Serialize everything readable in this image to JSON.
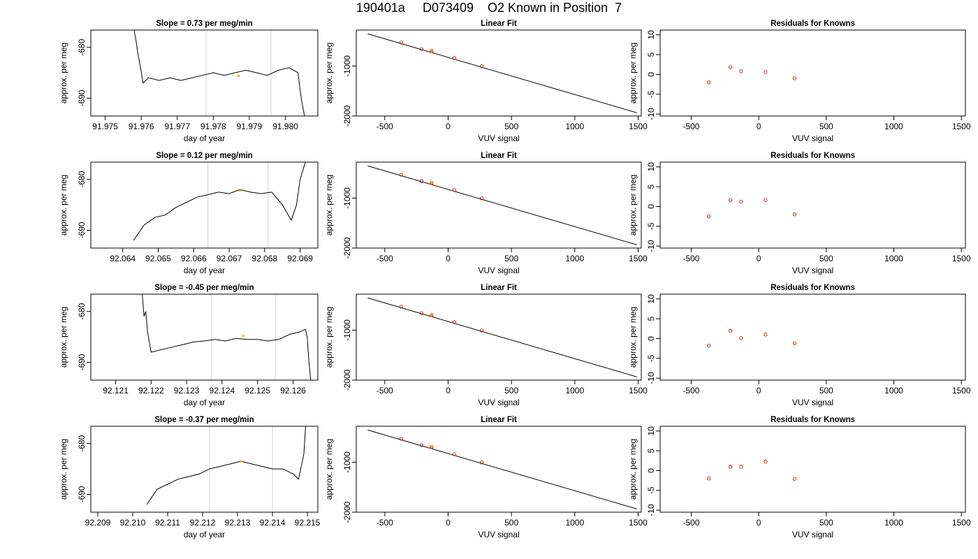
{
  "page_title": "190401a     D073409    O2 Known in Position  7",
  "colors": {
    "line": "#000000",
    "vline": "#d3d3d3",
    "highlight": "#ffa500",
    "points": "#cc2200",
    "frame": "#000000"
  },
  "chart_data": [
    {
      "type": "line",
      "title": "Slope =  0.73  per meg/min",
      "xlabel": "day of year",
      "ylabel": "approx. per meg",
      "xlim": [
        91.9746,
        91.9809
      ],
      "ylim": [
        -693.5,
        -676.6
      ],
      "xticks": [
        "91.975",
        "91.976",
        "91.977",
        "91.978",
        "91.979",
        "91.980"
      ],
      "xtick_values": [
        91.975,
        91.976,
        91.977,
        91.978,
        91.979,
        91.98
      ],
      "yticks": [
        "-690",
        "-680"
      ],
      "ytick_values": [
        -690,
        -680
      ],
      "vlines": [
        91.9778,
        91.9796
      ],
      "highlight_point": {
        "x": 91.9787,
        "y": -685.6
      },
      "series": [
        {
          "x": [
            91.9758,
            91.97585,
            91.9759,
            91.97598,
            91.97605,
            91.9762,
            91.9765,
            91.9768,
            91.9771,
            91.9774,
            91.9777,
            91.978,
            91.9783,
            91.9786,
            91.9789,
            91.9792,
            91.9795,
            91.9798,
            91.9801,
            91.98035,
            91.9804,
            91.98045,
            91.98053
          ],
          "y": [
            -676.6,
            -678.5,
            -681,
            -684,
            -687,
            -686,
            -686.5,
            -686,
            -686.5,
            -686,
            -685.5,
            -685,
            -685.5,
            -685,
            -684.5,
            -685,
            -685.5,
            -684.5,
            -684,
            -685,
            -688,
            -690.5,
            -693.5
          ]
        }
      ]
    },
    {
      "type": "line",
      "title": "Slope =  0.12  per meg/min",
      "xlabel": "day of year",
      "ylabel": "approx. per meg",
      "xlim": [
        92.0631,
        92.0695
      ],
      "ylim": [
        -693.5,
        -676.6
      ],
      "xticks": [
        "92.064",
        "92.065",
        "92.066",
        "92.067",
        "92.068",
        "92.069"
      ],
      "xtick_values": [
        92.064,
        92.065,
        92.066,
        92.067,
        92.068,
        92.069
      ],
      "yticks": [
        "-690",
        "-680"
      ],
      "ytick_values": [
        -690,
        -680
      ],
      "vlines": [
        92.0664,
        92.0681
      ],
      "highlight_point": {
        "x": 92.0673,
        "y": -682.2
      },
      "series": [
        {
          "x": [
            92.0643,
            92.0646,
            92.0649,
            92.0652,
            92.0655,
            92.0658,
            92.0661,
            92.0664,
            92.0667,
            92.067,
            92.0673,
            92.0676,
            92.0679,
            92.0682,
            92.0685,
            92.06875,
            92.0689,
            92.069,
            92.06915
          ],
          "y": [
            -692,
            -689,
            -687.5,
            -687,
            -685.5,
            -684.5,
            -683.5,
            -683,
            -682.5,
            -682.8,
            -682,
            -682.5,
            -682.8,
            -682.5,
            -685,
            -688,
            -685,
            -680,
            -676.6
          ]
        }
      ]
    },
    {
      "type": "line",
      "title": "Slope =  -0.45  per meg/min",
      "xlabel": "day of year",
      "ylabel": "approx. per meg",
      "xlim": [
        92.1203,
        92.1267
      ],
      "ylim": [
        -693.5,
        -676.6
      ],
      "xticks": [
        "92.121",
        "92.122",
        "92.123",
        "92.124",
        "92.125",
        "92.126"
      ],
      "xtick_values": [
        92.121,
        92.122,
        92.123,
        92.124,
        92.125,
        92.126
      ],
      "yticks": [
        "-690",
        "-680"
      ],
      "ytick_values": [
        -690,
        -680
      ],
      "vlines": [
        92.1237,
        92.1255
      ],
      "highlight_point": {
        "x": 92.1246,
        "y": -684.8
      },
      "series": [
        {
          "x": [
            92.12175,
            92.1218,
            92.12185,
            92.1219,
            92.122,
            92.1223,
            92.1226,
            92.1229,
            92.1232,
            92.1235,
            92.1238,
            92.1241,
            92.1244,
            92.1247,
            92.125,
            92.1253,
            92.1256,
            92.1259,
            92.1262,
            92.12635,
            92.1264,
            92.12645,
            92.1265
          ],
          "y": [
            -676.6,
            -681,
            -680,
            -684,
            -688,
            -687.5,
            -687,
            -686.5,
            -686,
            -685.8,
            -685.5,
            -685.8,
            -685.3,
            -685.5,
            -685.5,
            -685.8,
            -685.5,
            -684.5,
            -684,
            -683.5,
            -685,
            -690,
            -693.5
          ]
        }
      ]
    },
    {
      "type": "line",
      "title": "Slope =  -0.37  per meg/min",
      "xlabel": "day of year",
      "ylabel": "approx. per meg",
      "xlim": [
        92.2088,
        92.2153
      ],
      "ylim": [
        -693.5,
        -676.6
      ],
      "xticks": [
        "92.209",
        "92.210",
        "92.211",
        "92.212",
        "92.213",
        "92.214",
        "92.215"
      ],
      "xtick_values": [
        92.209,
        92.21,
        92.211,
        92.212,
        92.213,
        92.214,
        92.215
      ],
      "yticks": [
        "-690",
        "-680"
      ],
      "ytick_values": [
        -690,
        -680
      ],
      "vlines": [
        92.2122,
        92.214
      ],
      "highlight_point": {
        "x": 92.2131,
        "y": -683.5
      },
      "series": [
        {
          "x": [
            92.2104,
            92.2107,
            92.211,
            92.2113,
            92.2116,
            92.2119,
            92.2122,
            92.2125,
            92.2128,
            92.2131,
            92.2134,
            92.2137,
            92.214,
            92.2143,
            92.2146,
            92.21475,
            92.2149,
            92.21495
          ],
          "y": [
            -692,
            -689,
            -688,
            -687,
            -686.5,
            -686,
            -685,
            -684.5,
            -684,
            -683.5,
            -684,
            -684.5,
            -685,
            -685,
            -686,
            -687,
            -682,
            -676.6
          ]
        }
      ]
    },
    {
      "type": "scatter",
      "title": "Linear Fit",
      "xlabel": "VUV signal",
      "ylabel": "approx. per meg",
      "xlim": [
        -725,
        1525
      ],
      "ylim": [
        -2000,
        -280
      ],
      "xticks": [
        "-500",
        "0",
        "500",
        "1000",
        "1500"
      ],
      "xtick_values": [
        -500,
        0,
        500,
        1000,
        1500
      ],
      "yticks": [
        "-2000",
        "-1000"
      ],
      "ytick_values": [
        -2000,
        -1000
      ],
      "fit_line": {
        "x": [
          -635,
          1490
        ],
        "y": [
          -355,
          -1935
        ]
      },
      "points": {
        "x": [
          -370,
          -210,
          -130,
          50,
          265
        ],
        "y": [
          -530,
          -660,
          -700,
          -840,
          -1005
        ]
      },
      "highlight_point": {
        "x": -130,
        "y": -700
      }
    },
    {
      "type": "scatter",
      "title": "Linear Fit",
      "xlabel": "VUV signal",
      "ylabel": "approx. per meg",
      "xlim": [
        -725,
        1525
      ],
      "ylim": [
        -2000,
        -280
      ],
      "xticks": [
        "-500",
        "0",
        "500",
        "1000",
        "1500"
      ],
      "xtick_values": [
        -500,
        0,
        500,
        1000,
        1500
      ],
      "yticks": [
        "-2000",
        "-1000"
      ],
      "ytick_values": [
        -2000,
        -1000
      ],
      "fit_line": {
        "x": [
          -635,
          1490
        ],
        "y": [
          -355,
          -1935
        ]
      },
      "points": {
        "x": [
          -370,
          -210,
          -130,
          50,
          265
        ],
        "y": [
          -530,
          -660,
          -700,
          -840,
          -1005
        ]
      },
      "highlight_point": {
        "x": -130,
        "y": -700
      }
    },
    {
      "type": "scatter",
      "title": "Linear Fit",
      "xlabel": "VUV signal",
      "ylabel": "approx. per meg",
      "xlim": [
        -725,
        1525
      ],
      "ylim": [
        -2000,
        -280
      ],
      "xticks": [
        "-500",
        "0",
        "500",
        "1000",
        "1500"
      ],
      "xtick_values": [
        -500,
        0,
        500,
        1000,
        1500
      ],
      "yticks": [
        "-2000",
        "-1000"
      ],
      "ytick_values": [
        -2000,
        -1000
      ],
      "fit_line": {
        "x": [
          -635,
          1490
        ],
        "y": [
          -355,
          -1935
        ]
      },
      "points": {
        "x": [
          -370,
          -210,
          -130,
          50,
          265
        ],
        "y": [
          -530,
          -660,
          -700,
          -840,
          -1005
        ]
      },
      "highlight_point": {
        "x": -130,
        "y": -700
      }
    },
    {
      "type": "scatter",
      "title": "Linear Fit",
      "xlabel": "VUV signal",
      "ylabel": "approx. per meg",
      "xlim": [
        -725,
        1525
      ],
      "ylim": [
        -2000,
        -280
      ],
      "xticks": [
        "-500",
        "0",
        "500",
        "1000",
        "1500"
      ],
      "xtick_values": [
        -500,
        0,
        500,
        1000,
        1500
      ],
      "yticks": [
        "-2000",
        "-1000"
      ],
      "ytick_values": [
        -2000,
        -1000
      ],
      "fit_line": {
        "x": [
          -635,
          1490
        ],
        "y": [
          -355,
          -1935
        ]
      },
      "points": {
        "x": [
          -370,
          -210,
          -130,
          50,
          265
        ],
        "y": [
          -530,
          -660,
          -700,
          -840,
          -1005
        ]
      },
      "highlight_point": {
        "x": -130,
        "y": -700
      }
    },
    {
      "type": "scatter",
      "title": "Residuals for Knowns",
      "xlabel": "VUV signal",
      "ylabel": "approx. per meg",
      "xlim": [
        -730,
        1530
      ],
      "ylim": [
        -10.5,
        11.2
      ],
      "xticks": [
        "-500",
        "0",
        "500",
        "1000",
        "1500"
      ],
      "xtick_values": [
        -500,
        0,
        500,
        1000,
        1500
      ],
      "yticks": [
        "-10",
        "-5",
        "0",
        "5",
        "10"
      ],
      "ytick_values": [
        -10,
        -5,
        0,
        5,
        10
      ],
      "points": {
        "x": [
          -370,
          -210,
          -130,
          50,
          265
        ],
        "y": [
          -2.0,
          1.8,
          0.8,
          0.6,
          -1.0
        ]
      }
    },
    {
      "type": "scatter",
      "title": "Residuals for Knowns",
      "xlabel": "VUV signal",
      "ylabel": "approx. per meg",
      "xlim": [
        -730,
        1530
      ],
      "ylim": [
        -10.5,
        11.2
      ],
      "xticks": [
        "-500",
        "0",
        "500",
        "1000",
        "1500"
      ],
      "xtick_values": [
        -500,
        0,
        500,
        1000,
        1500
      ],
      "yticks": [
        "-10",
        "-5",
        "0",
        "5",
        "10"
      ],
      "ytick_values": [
        -10,
        -5,
        0,
        5,
        10
      ],
      "points": {
        "x": [
          -370,
          -210,
          -130,
          50,
          265
        ],
        "y": [
          -2.5,
          1.6,
          1.2,
          1.6,
          -2.0
        ]
      }
    },
    {
      "type": "scatter",
      "title": "Residuals for Knowns",
      "xlabel": "VUV signal",
      "ylabel": "approx. per meg",
      "xlim": [
        -730,
        1530
      ],
      "ylim": [
        -10.5,
        11.2
      ],
      "xticks": [
        "-500",
        "0",
        "500",
        "1000",
        "1500"
      ],
      "xtick_values": [
        -500,
        0,
        500,
        1000,
        1500
      ],
      "yticks": [
        "-10",
        "-5",
        "0",
        "5",
        "10"
      ],
      "ytick_values": [
        -10,
        -5,
        0,
        5,
        10
      ],
      "points": {
        "x": [
          -370,
          -210,
          -130,
          50,
          265
        ],
        "y": [
          -1.8,
          2.0,
          0.1,
          1.0,
          -1.2
        ]
      }
    },
    {
      "type": "scatter",
      "title": "Residuals for Knowns",
      "xlabel": "VUV signal",
      "ylabel": "approx. per meg",
      "xlim": [
        -730,
        1530
      ],
      "ylim": [
        -10.5,
        11.2
      ],
      "xticks": [
        "-500",
        "0",
        "500",
        "1000",
        "1500"
      ],
      "xtick_values": [
        -500,
        0,
        500,
        1000,
        1500
      ],
      "yticks": [
        "-10",
        "-5",
        "0",
        "5",
        "10"
      ],
      "ytick_values": [
        -10,
        -5,
        0,
        5,
        10
      ],
      "points": {
        "x": [
          -370,
          -210,
          -130,
          50,
          265
        ],
        "y": [
          -2.0,
          1.0,
          1.0,
          2.3,
          -2.1
        ]
      }
    }
  ]
}
